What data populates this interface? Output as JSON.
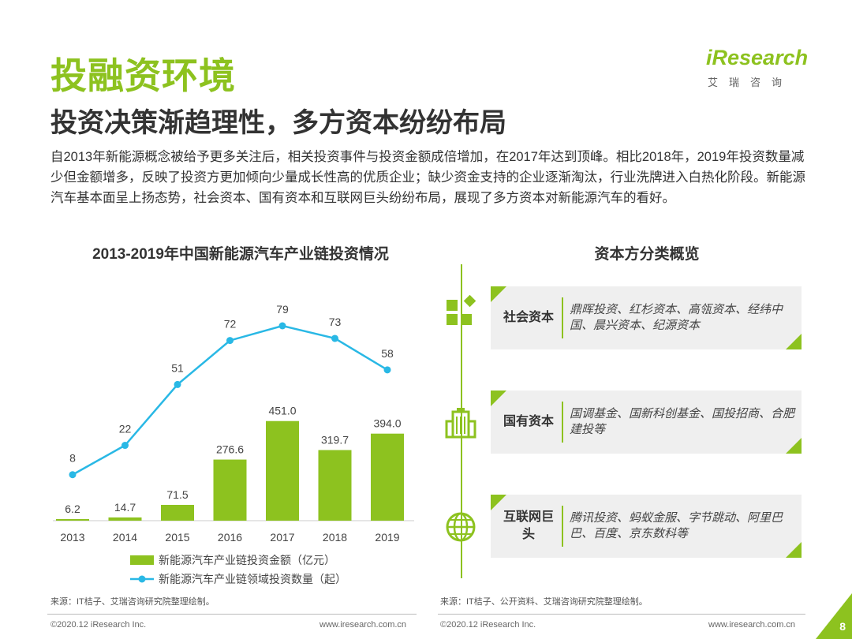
{
  "header": {
    "title": "投融资环境",
    "subtitle": "投资决策渐趋理性，多方资本纷纷布局",
    "intro": "自2013年新能源概念被给予更多关注后，相关投资事件与投资金额成倍增加，在2017年达到顶峰。相比2018年，2019年投资数量减少但金额增多，反映了投资方更加倾向少量成长性高的优质企业；缺少资金支持的企业逐渐淘汰，行业洗牌进入白热化阶段。新能源汽车基本面呈上扬态势，社会资本、国有资本和互联网巨头纷纷布局，展现了多方资本对新能源汽车的看好。"
  },
  "logo": {
    "brand": "iResearch",
    "sub": "艾瑞咨询"
  },
  "chart_data": {
    "type": "bar+line",
    "title": "2013-2019年中国新能源汽车产业链投资情况",
    "categories": [
      "2013",
      "2014",
      "2015",
      "2016",
      "2017",
      "2018",
      "2019"
    ],
    "series": [
      {
        "name": "新能源汽车产业链投资金额（亿元）",
        "kind": "bar",
        "values": [
          6.2,
          14.7,
          71.5,
          276.6,
          451.0,
          319.7,
          394.0
        ],
        "labels": [
          "6.2",
          "14.7",
          "71.5",
          "276.6",
          "451.0",
          "319.7",
          "394.0"
        ],
        "color": "#8dc21f"
      },
      {
        "name": "新能源汽车产业链领域投资数量（起）",
        "kind": "line",
        "values": [
          8,
          22,
          51,
          72,
          79,
          73,
          58
        ],
        "labels": [
          "8",
          "22",
          "51",
          "72",
          "79",
          "73",
          "58"
        ],
        "color": "#29b8e5"
      }
    ]
  },
  "capital": {
    "title": "资本方分类概览",
    "items": [
      {
        "category": "社会资本",
        "names": "鼎晖投资、红杉资本、高瓴资本、经纬中国、晨兴资本、纪源资本",
        "icon": "blocks-icon"
      },
      {
        "category": "国有资本",
        "names": "国调基金、国新科创基金、国投招商、合肥建投等",
        "icon": "building-icon"
      },
      {
        "category": "互联网巨头",
        "names": "腾讯投资、蚂蚁金服、字节跳动、阿里巴巴、百度、京东数科等",
        "icon": "globe-icon"
      }
    ]
  },
  "footer": {
    "source_left": "来源：IT桔子、艾瑞咨询研究院整理绘制。",
    "source_right": "来源：IT桔子、公开资料、艾瑞咨询研究院整理绘制。",
    "copyright": "©2020.12 iResearch Inc.",
    "url": "www.iresearch.com.cn",
    "page": "8"
  },
  "colors": {
    "accent": "#8dc21f",
    "line": "#29b8e5"
  }
}
